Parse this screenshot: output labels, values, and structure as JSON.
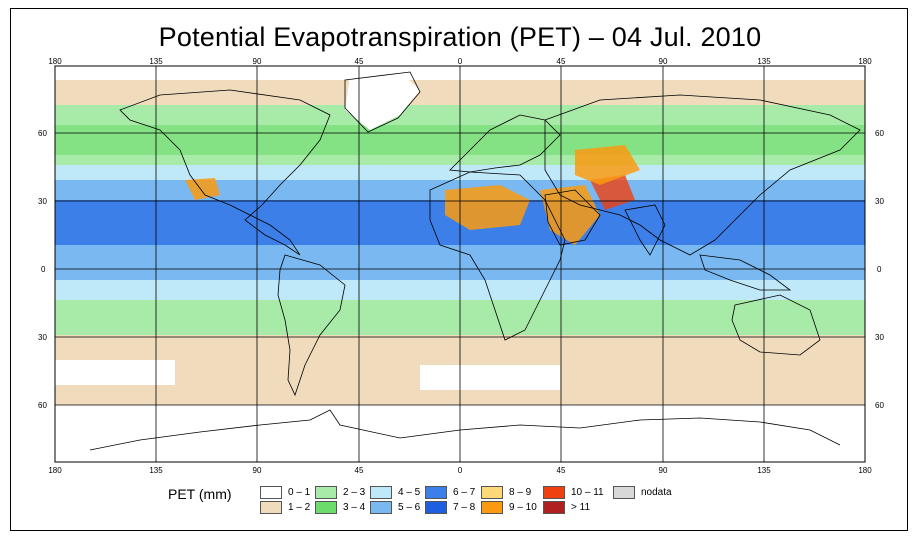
{
  "title": "Potential Evapotranspiration (PET) – 04 Jul. 2010",
  "map": {
    "lon_ticks": [
      "180",
      "135",
      "90",
      "45",
      "0",
      "45",
      "90",
      "135",
      "180"
    ],
    "lat_ticks": [
      "60",
      "30",
      "0",
      "30",
      "60"
    ],
    "lat_values": [
      60,
      30,
      0,
      -30,
      -60
    ],
    "lon_values": [
      -180,
      -135,
      -90,
      -45,
      0,
      45,
      90,
      135,
      180
    ],
    "extent": {
      "lon": [
        -180,
        180
      ],
      "lat": [
        -90,
        90
      ]
    }
  },
  "legend": {
    "title": "PET (mm)",
    "classes": [
      {
        "label": "0 – 1",
        "color": "#ffffff"
      },
      {
        "label": "1 – 2",
        "color": "#f0dcbc"
      },
      {
        "label": "2 – 3",
        "color": "#a8eaa8"
      },
      {
        "label": "3 – 4",
        "color": "#6cdc6c"
      },
      {
        "label": "4 – 5",
        "color": "#bfe8f8"
      },
      {
        "label": "5 – 6",
        "color": "#79b8f0"
      },
      {
        "label": "6 – 7",
        "color": "#3d7fe8"
      },
      {
        "label": "7 – 8",
        "color": "#1e5ee0"
      },
      {
        "label": "8 – 9",
        "color": "#fcd878"
      },
      {
        "label": "9 – 10",
        "color": "#fa9a10"
      },
      {
        "label": "10 – 11",
        "color": "#f04010"
      },
      {
        "label": "> 11",
        "color": "#b02020"
      },
      {
        "label": "nodata",
        "color": "#d8d8d8"
      }
    ]
  }
}
